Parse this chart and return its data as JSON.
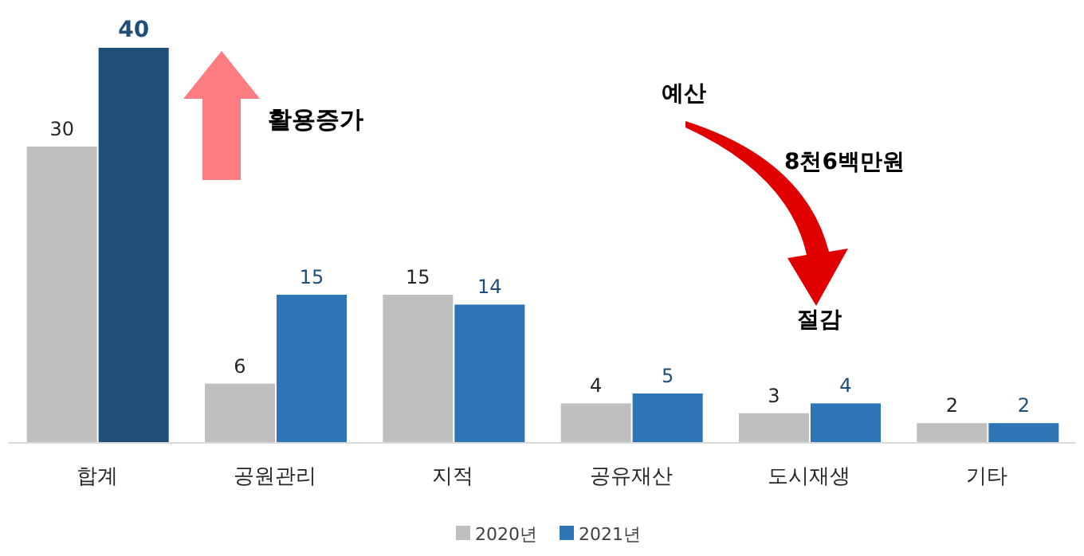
{
  "chart_data": {
    "type": "bar",
    "categories": [
      "합계",
      "공원관리",
      "지적",
      "공유재산",
      "도시재생",
      "기타"
    ],
    "series": [
      {
        "name": "2020년",
        "color": "#bfbfbf",
        "values": [
          30,
          6,
          15,
          4,
          3,
          2
        ]
      },
      {
        "name": "2021년",
        "color": "#2e75b6",
        "colors": [
          "#1f4e79",
          "#2e75b6",
          "#2e75b6",
          "#2e75b6",
          "#2e75b6",
          "#2e75b6"
        ],
        "values": [
          40,
          15,
          14,
          5,
          4,
          2
        ]
      }
    ],
    "data_labels": true,
    "legend": "bottom",
    "annotations": [
      "활용증가",
      "예산",
      "8천6백만원",
      "절감"
    ]
  }
}
